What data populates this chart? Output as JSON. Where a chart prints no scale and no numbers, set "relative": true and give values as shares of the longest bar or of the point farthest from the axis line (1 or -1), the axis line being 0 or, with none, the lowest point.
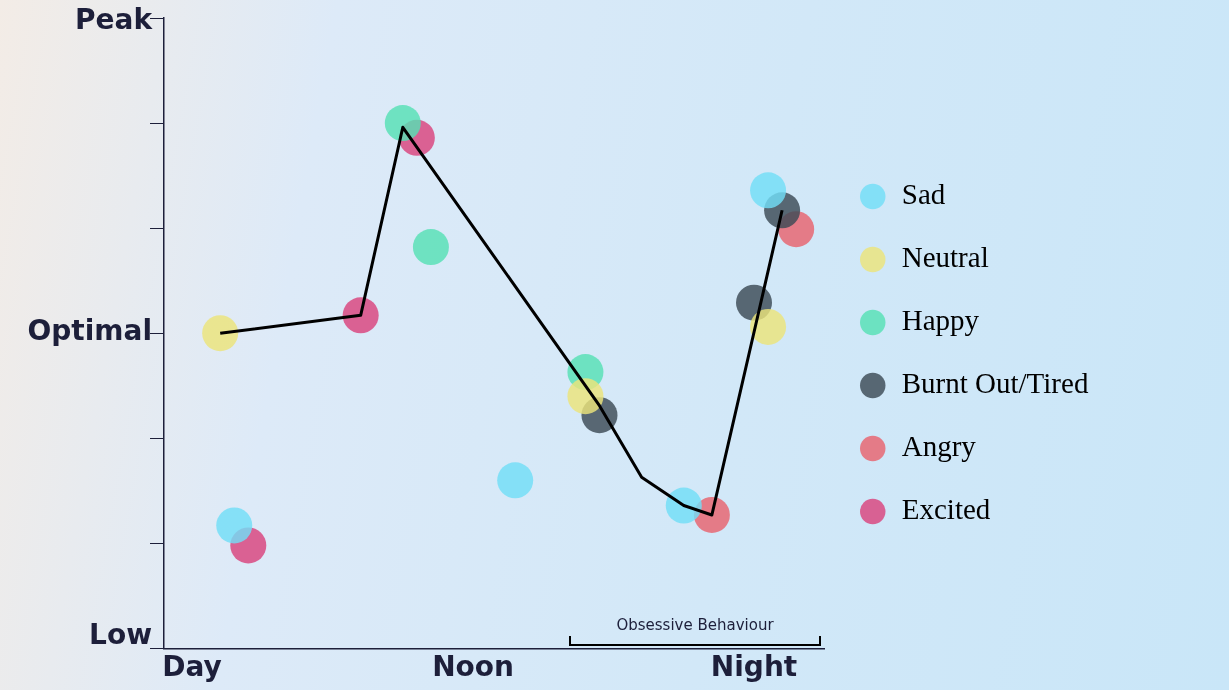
{
  "chart_data": {
    "type": "scatter",
    "relative": true,
    "grid": false,
    "legend": "right",
    "marker": "circle",
    "categories": [
      null,
      null,
      "Day",
      null,
      null,
      null,
      null,
      null,
      null,
      null,
      null,
      null,
      null,
      null,
      null,
      null,
      null,
      null,
      null,
      null,
      null,
      null,
      "Noon",
      null,
      null,
      null,
      null,
      null,
      null,
      null,
      null,
      null,
      null,
      null,
      null,
      null,
      null,
      null,
      null,
      null,
      null,
      null,
      "Night",
      null,
      null,
      null,
      null,
      null
    ],
    "annotations": [
      "Peak",
      "Optimal",
      "Low",
      "Obsessive Behaviour"
    ],
    "series": [
      {
        "type": "line",
        "color": "#000000",
        "marker": "none",
        "values": [
          null,
          null,
          null,
          null,
          0.6,
          null,
          null,
          null,
          null,
          null,
          null,
          null,
          null,
          null,
          0.634,
          null,
          null,
          0.992,
          null,
          null,
          null,
          null,
          null,
          null,
          null,
          null,
          null,
          null,
          null,
          null,
          null,
          0.462,
          null,
          null,
          0.326,
          null,
          null,
          0.272,
          null,
          0.254,
          null,
          null,
          null,
          null,
          0.834,
          null,
          null,
          null
        ]
      },
      {
        "name": "Sad",
        "color": "#72def7",
        "values": [
          null,
          null,
          null,
          null,
          null,
          0.234,
          null,
          null,
          null,
          null,
          null,
          null,
          null,
          null,
          null,
          null,
          null,
          null,
          null,
          null,
          null,
          null,
          null,
          null,
          null,
          0.32,
          null,
          null,
          null,
          null,
          null,
          null,
          null,
          null,
          null,
          null,
          null,
          0.272,
          null,
          null,
          null,
          null,
          null,
          0.872,
          null,
          null,
          null,
          null
        ]
      },
      {
        "name": "Neutral",
        "color": "#ece47a",
        "values": [
          null,
          null,
          null,
          null,
          0.6,
          null,
          null,
          null,
          null,
          null,
          null,
          null,
          null,
          null,
          null,
          null,
          null,
          null,
          null,
          null,
          null,
          null,
          null,
          null,
          null,
          null,
          null,
          null,
          null,
          null,
          0.48,
          null,
          null,
          null,
          null,
          null,
          null,
          null,
          null,
          null,
          null,
          null,
          null,
          0.612,
          null,
          null,
          null,
          null
        ]
      },
      {
        "name": "Happy",
        "color": "#55e0b4",
        "values": [
          null,
          null,
          null,
          null,
          null,
          null,
          null,
          null,
          null,
          null,
          null,
          null,
          null,
          null,
          null,
          null,
          null,
          1.0,
          null,
          0.764,
          null,
          null,
          null,
          null,
          null,
          null,
          null,
          null,
          null,
          null,
          0.526,
          null,
          null,
          null,
          null,
          null,
          null,
          null,
          null,
          null,
          null,
          null,
          null,
          null,
          null,
          null,
          null,
          null
        ]
      },
      {
        "name": "Burnt Out/Tired",
        "color": "#3c4a55",
        "values": [
          null,
          null,
          null,
          null,
          null,
          null,
          null,
          null,
          null,
          null,
          null,
          null,
          null,
          null,
          null,
          null,
          null,
          null,
          null,
          null,
          null,
          null,
          null,
          null,
          null,
          null,
          null,
          null,
          null,
          null,
          null,
          0.444,
          null,
          null,
          null,
          null,
          null,
          null,
          null,
          null,
          null,
          null,
          0.658,
          null,
          0.834,
          null,
          null,
          null
        ]
      },
      {
        "name": "Angry",
        "color": "#e8636e",
        "values": [
          null,
          null,
          null,
          null,
          null,
          null,
          null,
          null,
          null,
          null,
          null,
          null,
          null,
          null,
          null,
          null,
          null,
          null,
          null,
          null,
          null,
          null,
          null,
          null,
          null,
          null,
          null,
          null,
          null,
          null,
          null,
          null,
          null,
          null,
          null,
          null,
          null,
          null,
          null,
          0.254,
          null,
          null,
          null,
          null,
          null,
          0.798,
          null,
          null
        ]
      },
      {
        "name": "Excited",
        "color": "#d9437d",
        "values": [
          null,
          null,
          null,
          null,
          null,
          null,
          0.196,
          null,
          null,
          null,
          null,
          null,
          null,
          null,
          0.634,
          null,
          null,
          null,
          0.972,
          null,
          null,
          null,
          null,
          null,
          null,
          null,
          null,
          null,
          null,
          null,
          null,
          null,
          null,
          null,
          null,
          null,
          null,
          null,
          null,
          null,
          null,
          null,
          null,
          null,
          null,
          null,
          null,
          null
        ]
      }
    ]
  }
}
